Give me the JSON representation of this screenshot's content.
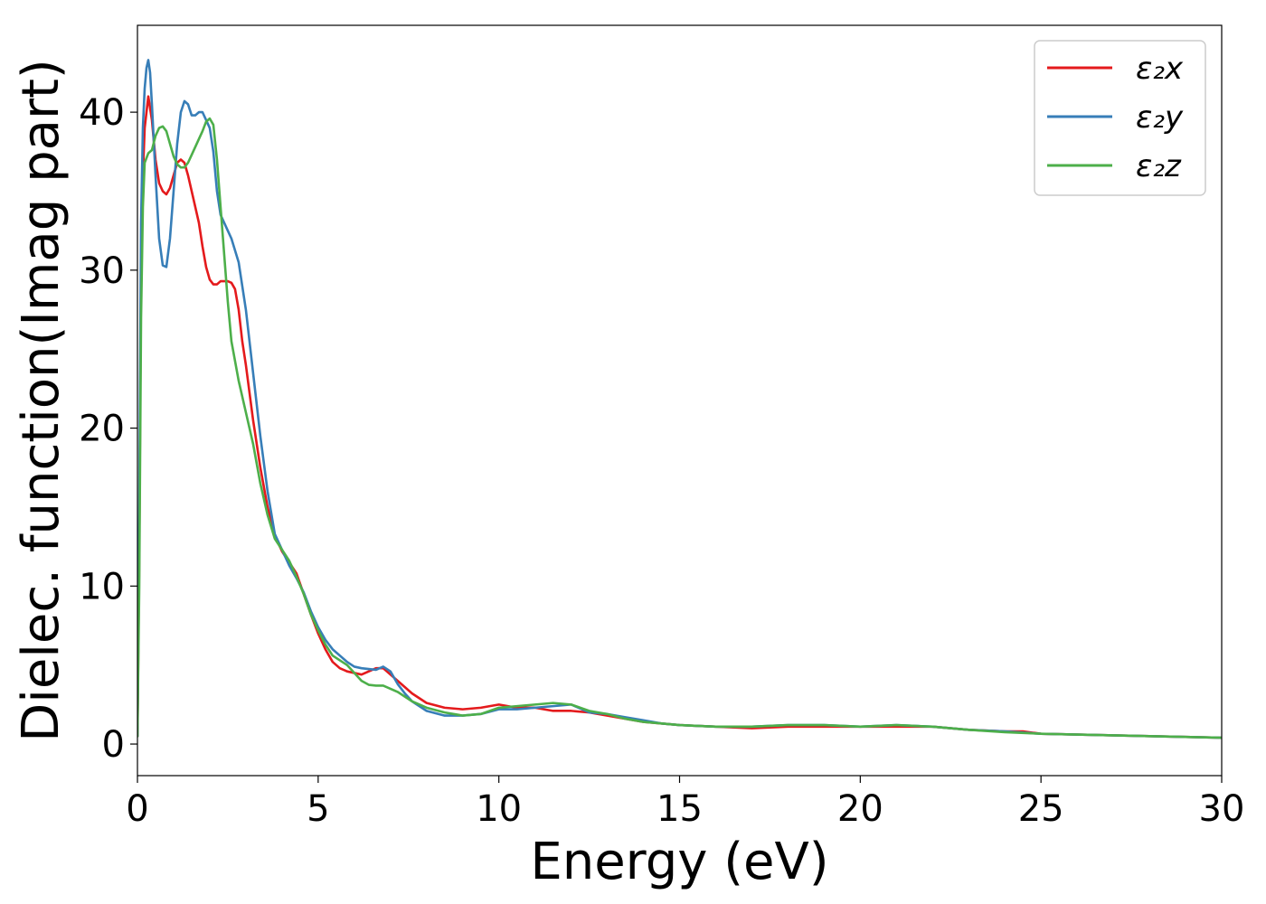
{
  "chart_data": {
    "type": "line",
    "title": "",
    "xlabel": "Energy (eV)",
    "ylabel": "Dielec. function(Imag part)",
    "xlim": [
      0,
      30
    ],
    "ylim": [
      -2,
      45.5
    ],
    "xticks": [
      0,
      5,
      10,
      15,
      20,
      25,
      30
    ],
    "yticks": [
      0,
      10,
      20,
      30,
      40
    ],
    "xtick_labels": [
      "0",
      "5",
      "10",
      "15",
      "20",
      "25",
      "30"
    ],
    "ytick_labels": [
      "0",
      "10",
      "20",
      "30",
      "40"
    ],
    "grid": false,
    "legend_position": "top-right",
    "series": [
      {
        "name": "ε₂x",
        "color": "#e41a1c",
        "x": [
          0,
          0.05,
          0.1,
          0.15,
          0.2,
          0.3,
          0.4,
          0.5,
          0.6,
          0.7,
          0.8,
          0.9,
          1.0,
          1.1,
          1.2,
          1.3,
          1.4,
          1.5,
          1.6,
          1.7,
          1.8,
          1.9,
          2.0,
          2.1,
          2.2,
          2.3,
          2.4,
          2.5,
          2.6,
          2.7,
          2.8,
          2.9,
          3.0,
          3.2,
          3.4,
          3.6,
          3.8,
          4.0,
          4.2,
          4.4,
          4.6,
          4.8,
          5.0,
          5.2,
          5.4,
          5.6,
          5.8,
          6.0,
          6.2,
          6.4,
          6.6,
          6.8,
          7.0,
          7.2,
          7.4,
          7.6,
          7.8,
          8.0,
          8.5,
          9.0,
          9.5,
          10.0,
          10.5,
          11.0,
          11.5,
          12.0,
          12.5,
          13.0,
          13.5,
          14.0,
          14.5,
          15.0,
          16.0,
          17.0,
          18.0,
          19.0,
          20.0,
          21.0,
          22.0,
          23.0,
          24.0,
          24.5,
          25.0,
          26.0,
          27.0,
          28.0,
          29.0,
          30.0
        ],
        "values": [
          0.5,
          12,
          30,
          36,
          39,
          41,
          39.5,
          37,
          35.5,
          35,
          34.8,
          35.2,
          36,
          36.8,
          37,
          36.8,
          36,
          35,
          34,
          33,
          31.5,
          30.2,
          29.4,
          29.1,
          29.1,
          29.3,
          29.3,
          29.3,
          29.2,
          28.8,
          27.5,
          25.5,
          24,
          20.5,
          17.5,
          15,
          13.2,
          12.2,
          11.5,
          10.8,
          9.5,
          8.2,
          7,
          6,
          5.2,
          4.8,
          4.6,
          4.5,
          4.4,
          4.6,
          4.8,
          4.8,
          4.4,
          4,
          3.6,
          3.2,
          2.9,
          2.6,
          2.3,
          2.2,
          2.3,
          2.5,
          2.3,
          2.3,
          2.1,
          2.1,
          2.0,
          1.8,
          1.6,
          1.4,
          1.3,
          1.2,
          1.1,
          1.0,
          1.1,
          1.1,
          1.1,
          1.1,
          1.1,
          0.9,
          0.8,
          0.8,
          0.65,
          0.6,
          0.55,
          0.5,
          0.45,
          0.4
        ]
      },
      {
        "name": "ε₂y",
        "color": "#377eb8",
        "x": [
          0,
          0.05,
          0.1,
          0.15,
          0.2,
          0.25,
          0.3,
          0.35,
          0.4,
          0.5,
          0.6,
          0.7,
          0.8,
          0.9,
          1.0,
          1.1,
          1.2,
          1.3,
          1.4,
          1.5,
          1.6,
          1.7,
          1.8,
          1.9,
          2.0,
          2.1,
          2.2,
          2.3,
          2.4,
          2.5,
          2.6,
          2.8,
          3.0,
          3.2,
          3.4,
          3.6,
          3.8,
          4.0,
          4.2,
          4.4,
          4.6,
          4.8,
          5.0,
          5.2,
          5.4,
          5.6,
          5.8,
          6.0,
          6.2,
          6.4,
          6.6,
          6.8,
          7.0,
          7.2,
          7.4,
          7.6,
          7.8,
          8.0,
          8.5,
          9.0,
          9.5,
          10.0,
          10.5,
          11.0,
          11.5,
          12.0,
          12.5,
          13.0,
          13.5,
          14.0,
          14.5,
          15.0,
          16.0,
          17.0,
          18.0,
          19.0,
          20.0,
          21.0,
          22.0,
          23.0,
          24.0,
          25.0,
          26.0,
          27.0,
          28.0,
          29.0,
          30.0
        ],
        "values": [
          0.5,
          15,
          33,
          39,
          41.5,
          42.8,
          43.3,
          42.5,
          40.5,
          36,
          32,
          30.3,
          30.2,
          32,
          35,
          38,
          40,
          40.7,
          40.5,
          39.8,
          39.8,
          40,
          40,
          39.5,
          39,
          37.5,
          35,
          33.5,
          33,
          32.5,
          32,
          30.5,
          27.5,
          23.5,
          19.5,
          16,
          13.3,
          12.3,
          11.3,
          10.5,
          9.6,
          8.4,
          7.4,
          6.6,
          6,
          5.6,
          5.2,
          4.9,
          4.8,
          4.75,
          4.7,
          4.9,
          4.6,
          3.8,
          3.2,
          2.7,
          2.4,
          2.1,
          1.8,
          1.8,
          1.9,
          2.2,
          2.2,
          2.3,
          2.4,
          2.5,
          2.0,
          1.9,
          1.7,
          1.5,
          1.3,
          1.2,
          1.1,
          1.1,
          1.2,
          1.2,
          1.1,
          1.2,
          1.1,
          0.9,
          0.8,
          0.65,
          0.6,
          0.55,
          0.5,
          0.45,
          0.4
        ]
      },
      {
        "name": "ε₂z",
        "color": "#4daf4a",
        "x": [
          0,
          0.05,
          0.1,
          0.15,
          0.2,
          0.3,
          0.4,
          0.5,
          0.6,
          0.7,
          0.8,
          0.9,
          1.0,
          1.1,
          1.2,
          1.3,
          1.4,
          1.5,
          1.6,
          1.7,
          1.8,
          1.9,
          2.0,
          2.1,
          2.2,
          2.3,
          2.4,
          2.5,
          2.6,
          2.8,
          3.0,
          3.2,
          3.4,
          3.6,
          3.8,
          4.0,
          4.2,
          4.4,
          4.6,
          4.8,
          5.0,
          5.2,
          5.4,
          5.6,
          5.8,
          6.0,
          6.2,
          6.4,
          6.6,
          6.8,
          7.0,
          7.2,
          7.4,
          7.6,
          7.8,
          8.0,
          8.5,
          9.0,
          9.5,
          10.0,
          10.5,
          11.0,
          11.5,
          12.0,
          12.5,
          13.0,
          13.5,
          14.0,
          14.5,
          15.0,
          16.0,
          17.0,
          18.0,
          19.0,
          20.0,
          21.0,
          22.0,
          23.0,
          24.0,
          25.0,
          26.0,
          27.0,
          28.0,
          29.0,
          30.0
        ],
        "values": [
          0.5,
          10,
          27,
          34,
          36.8,
          37.4,
          37.6,
          38.5,
          39,
          39.1,
          38.8,
          38,
          37.2,
          36.7,
          36.5,
          36.5,
          36.8,
          37.3,
          37.8,
          38.3,
          38.8,
          39.4,
          39.6,
          39.2,
          37,
          34,
          31,
          28,
          25.5,
          23,
          21,
          19,
          16.5,
          14.5,
          13,
          12.3,
          11.6,
          10.6,
          9.5,
          8.2,
          7.2,
          6.3,
          5.6,
          5.3,
          5.0,
          4.5,
          4.0,
          3.75,
          3.7,
          3.7,
          3.5,
          3.3,
          3.0,
          2.7,
          2.5,
          2.3,
          2.0,
          1.8,
          1.9,
          2.3,
          2.4,
          2.5,
          2.6,
          2.5,
          2.1,
          1.9,
          1.6,
          1.4,
          1.3,
          1.2,
          1.1,
          1.1,
          1.2,
          1.2,
          1.1,
          1.2,
          1.1,
          0.9,
          0.75,
          0.65,
          0.6,
          0.55,
          0.5,
          0.45,
          0.4
        ]
      }
    ]
  }
}
